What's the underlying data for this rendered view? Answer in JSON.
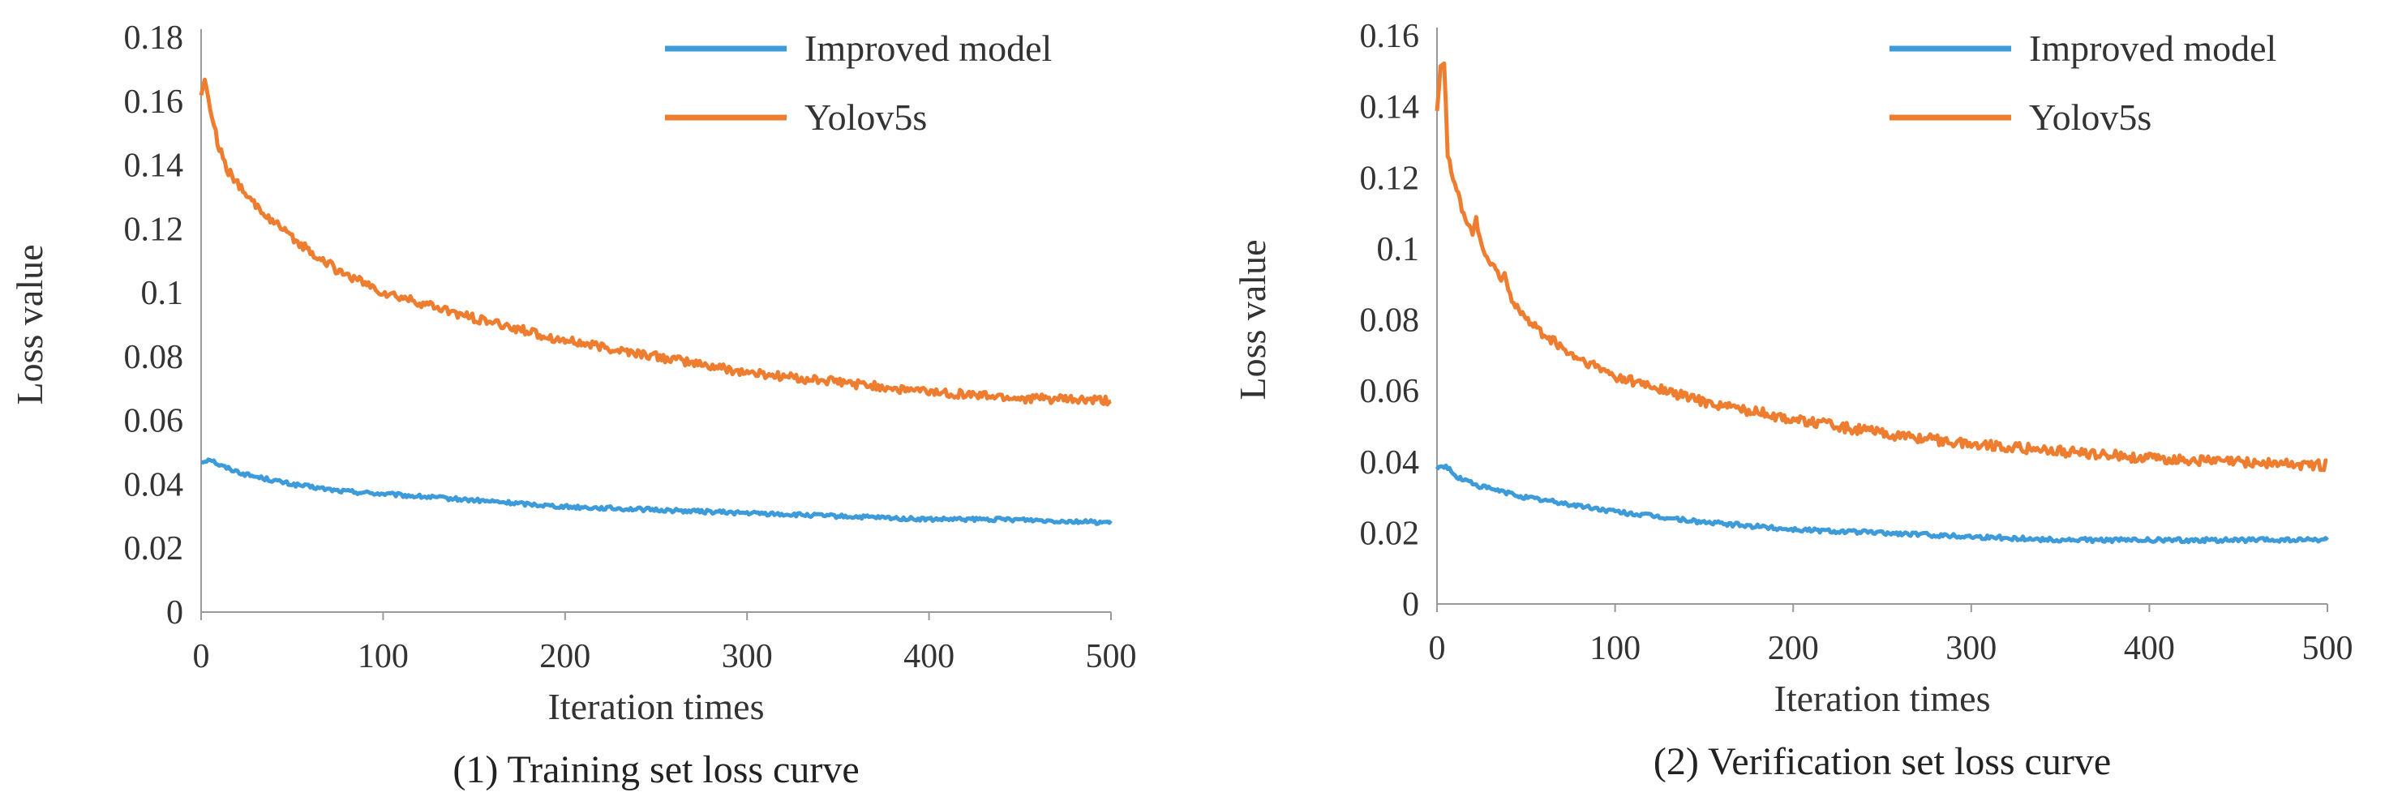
{
  "chart_data": [
    {
      "type": "line",
      "title": "(1) Training set loss curve",
      "xlabel": "Iteration times",
      "ylabel": "Loss value",
      "xlim": [
        0,
        500
      ],
      "ylim": [
        0,
        0.18
      ],
      "x_ticks": [
        0,
        100,
        200,
        300,
        400,
        500
      ],
      "y_ticks": [
        0,
        0.02,
        0.04,
        0.06,
        0.08,
        0.1,
        0.12,
        0.14,
        0.16,
        0.18
      ],
      "y_tick_labels": [
        "0",
        "0.02",
        "0.04",
        "0.06",
        "0.08",
        "0.1",
        "0.12",
        "0.14",
        "0.16",
        "0.18"
      ],
      "x_tick_labels": [
        "0",
        "100",
        "200",
        "300",
        "400",
        "500"
      ],
      "grid": false,
      "legend_position": "top-right",
      "series": [
        {
          "name": "Improved model",
          "color": "#3d9bd9",
          "x": [
            0,
            5,
            10,
            25,
            50,
            75,
            100,
            150,
            200,
            250,
            300,
            350,
            400,
            450,
            500
          ],
          "values": [
            0.047,
            0.048,
            0.046,
            0.043,
            0.04,
            0.038,
            0.037,
            0.035,
            0.033,
            0.032,
            0.031,
            0.03,
            0.029,
            0.029,
            0.028
          ]
        },
        {
          "name": "Yolov5s",
          "color": "#ee7d2f",
          "x": [
            0,
            2,
            5,
            10,
            15,
            25,
            50,
            75,
            100,
            150,
            200,
            250,
            300,
            350,
            400,
            450,
            500
          ],
          "values": [
            0.163,
            0.166,
            0.158,
            0.145,
            0.138,
            0.13,
            0.117,
            0.107,
            0.1,
            0.092,
            0.085,
            0.08,
            0.075,
            0.072,
            0.069,
            0.067,
            0.066
          ]
        }
      ]
    },
    {
      "type": "line",
      "title": "(2) Verification set loss curve",
      "xlabel": "Iteration times",
      "ylabel": "Loss value",
      "xlim": [
        0,
        500
      ],
      "ylim": [
        0,
        0.16
      ],
      "x_ticks": [
        0,
        100,
        200,
        300,
        400,
        500
      ],
      "y_ticks": [
        0,
        0.02,
        0.04,
        0.06,
        0.08,
        0.1,
        0.12,
        0.14,
        0.16
      ],
      "y_tick_labels": [
        "0",
        "0.02",
        "0.04",
        "0.06",
        "0.08",
        "0.1",
        "0.12",
        "0.14",
        "0.16"
      ],
      "x_tick_labels": [
        "0",
        "100",
        "200",
        "300",
        "400",
        "500"
      ],
      "grid": false,
      "legend_position": "top-right",
      "series": [
        {
          "name": "Improved model",
          "color": "#3d9bd9",
          "x": [
            0,
            5,
            10,
            25,
            50,
            75,
            100,
            150,
            200,
            250,
            300,
            350,
            400,
            450,
            500
          ],
          "values": [
            0.038,
            0.039,
            0.036,
            0.033,
            0.03,
            0.028,
            0.026,
            0.023,
            0.021,
            0.02,
            0.019,
            0.018,
            0.018,
            0.018,
            0.018
          ]
        },
        {
          "name": "Yolov5s",
          "color": "#ee7d2f",
          "x": [
            0,
            2,
            4,
            6,
            10,
            15,
            20,
            22,
            25,
            30,
            35,
            38,
            40,
            45,
            50,
            75,
            100,
            150,
            200,
            250,
            300,
            350,
            400,
            450,
            500
          ],
          "values": [
            0.14,
            0.152,
            0.153,
            0.127,
            0.118,
            0.11,
            0.104,
            0.109,
            0.1,
            0.096,
            0.092,
            0.093,
            0.088,
            0.084,
            0.08,
            0.07,
            0.064,
            0.057,
            0.052,
            0.048,
            0.045,
            0.043,
            0.041,
            0.04,
            0.039
          ]
        }
      ]
    }
  ]
}
